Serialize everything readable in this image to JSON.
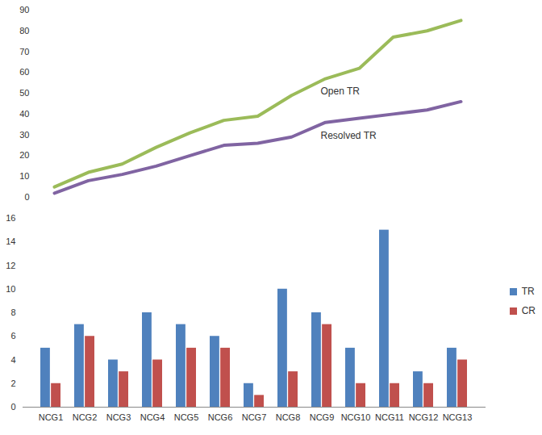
{
  "chart_data": [
    {
      "type": "line",
      "categories": [
        null,
        null,
        null,
        null,
        null,
        null,
        null,
        null,
        null,
        null,
        null,
        null,
        null
      ],
      "ylim": [
        0,
        90
      ],
      "yticks": [
        0,
        10,
        20,
        30,
        40,
        50,
        60,
        70,
        80,
        90
      ],
      "tick_labels": "y",
      "series": [
        {
          "name": "Open TR",
          "color": "#9bbb59",
          "values": [
            5,
            12,
            16,
            24,
            31,
            37,
            39,
            49,
            57,
            62,
            77,
            80,
            85
          ]
        },
        {
          "name": "Resolved TR",
          "color": "#8064a2",
          "values": [
            2,
            8,
            11,
            15,
            20,
            25,
            26,
            29,
            36,
            38,
            40,
            42,
            46
          ]
        }
      ]
    },
    {
      "type": "bar",
      "categories": [
        "NCG1",
        "NCG2",
        "NCG3",
        "NCG4",
        "NCG5",
        "NCG6",
        "NCG7",
        "NCG8",
        "NCG9",
        "NCG10",
        "NCG11",
        "NCG12",
        "NCG13"
      ],
      "ylim": [
        0,
        16
      ],
      "yticks": [
        0,
        2,
        4,
        6,
        8,
        10,
        12,
        14,
        16
      ],
      "legend": "right",
      "series": [
        {
          "name": "TR",
          "color": "#4f81bd",
          "values": [
            5,
            7,
            4,
            8,
            7,
            6,
            2,
            10,
            8,
            5,
            15,
            3,
            5
          ]
        },
        {
          "name": "CR",
          "color": "#c0504d",
          "values": [
            2,
            6,
            3,
            4,
            5,
            5,
            1,
            3,
            7,
            2,
            2,
            2,
            4
          ]
        }
      ]
    }
  ]
}
